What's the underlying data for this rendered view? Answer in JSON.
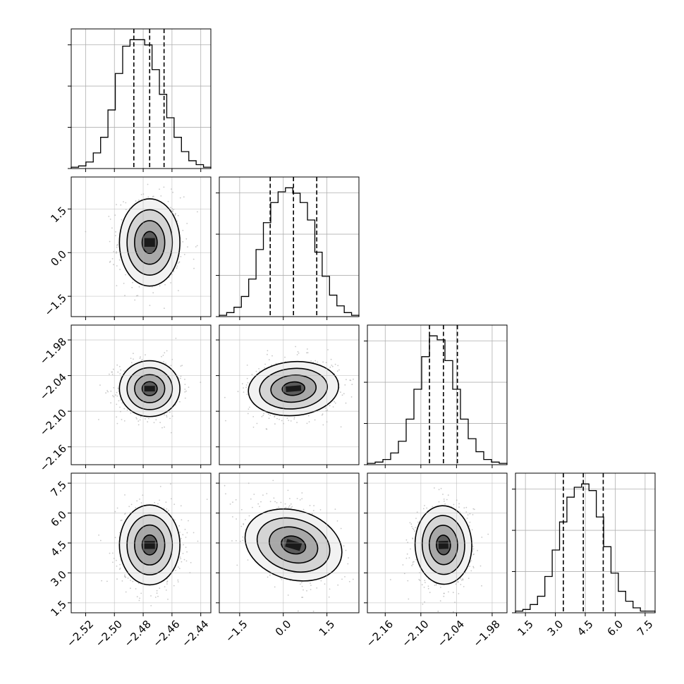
{
  "chart_data": {
    "type": "corner",
    "grid": true,
    "parameters": [
      {
        "index": 0,
        "range": [
          -2.53,
          -2.433
        ],
        "ticks": [
          "−2.52",
          "−2.50",
          "−2.48",
          "−2.46",
          "−2.44"
        ],
        "tick_values": [
          -2.52,
          -2.5,
          -2.48,
          -2.46,
          -2.44
        ],
        "mean": -2.4755,
        "sd": 0.0105,
        "quantiles": [
          -2.4865,
          -2.4755,
          -2.4655
        ],
        "hist_counts": [
          1,
          2,
          5,
          12,
          24,
          45,
          73,
          94,
          99,
          99,
          95,
          76,
          57,
          39,
          24,
          13,
          6,
          3,
          1
        ]
      },
      {
        "index": 1,
        "range": [
          -2.2,
          2.6
        ],
        "ticks": [
          "−1.5",
          "0.0",
          "1.5"
        ],
        "tick_values": [
          -1.5,
          0.0,
          1.5
        ],
        "mean": 0.35,
        "sd": 0.75,
        "quantiles": [
          -0.45,
          0.35,
          1.15
        ],
        "hist_counts": [
          1,
          3,
          7,
          15,
          28,
          50,
          70,
          85,
          93,
          96,
          92,
          85,
          72,
          48,
          30,
          16,
          8,
          3,
          1
        ]
      },
      {
        "index": 2,
        "range": [
          -2.19,
          -1.955
        ],
        "ticks": [
          "−2.16",
          "−2.10",
          "−2.04",
          "−1.98"
        ],
        "tick_values": [
          -2.16,
          -2.1,
          -2.04,
          -1.98
        ],
        "mean": -2.062,
        "sd": 0.0235,
        "quantiles": [
          -2.0855,
          -2.062,
          -2.0385
        ],
        "hist_counts": [
          1,
          2,
          4,
          9,
          18,
          35,
          58,
          83,
          99,
          96,
          80,
          58,
          35,
          20,
          10,
          4,
          2,
          1
        ]
      },
      {
        "index": 3,
        "range": [
          1.0,
          8.0
        ],
        "ticks": [
          "1.5",
          "3.0",
          "4.5",
          "6.0",
          "7.5"
        ],
        "tick_values": [
          1.5,
          3.0,
          4.5,
          6.0,
          7.5
        ],
        "mean": 4.4,
        "sd": 1.0,
        "quantiles": [
          3.4,
          4.4,
          5.4
        ],
        "hist_counts": [
          1,
          2,
          5,
          10,
          22,
          38,
          55,
          70,
          76,
          78,
          74,
          58,
          40,
          24,
          13,
          7,
          3,
          1,
          1
        ]
      }
    ],
    "pairs": [
      {
        "row": 1,
        "col": 0,
        "center": [
          -2.4755,
          0.35
        ],
        "correlation": 0.0
      },
      {
        "row": 2,
        "col": 0,
        "center": [
          -2.4755,
          -2.062
        ],
        "correlation": 0.0
      },
      {
        "row": 2,
        "col": 1,
        "center": [
          0.35,
          -2.062
        ],
        "correlation": 0.12
      },
      {
        "row": 3,
        "col": 0,
        "center": [
          -2.4755,
          4.4
        ],
        "correlation": 0.0
      },
      {
        "row": 3,
        "col": 1,
        "center": [
          0.35,
          4.4
        ],
        "correlation": -0.45
      },
      {
        "row": 3,
        "col": 2,
        "center": [
          -2.062,
          4.4
        ],
        "correlation": 0.05
      }
    ],
    "diag_yticks": [
      "",
      "",
      "",
      ""
    ]
  }
}
